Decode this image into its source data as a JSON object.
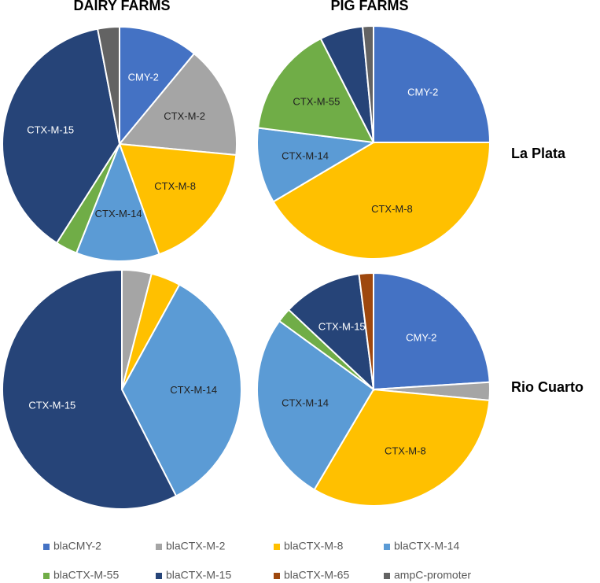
{
  "column_titles": [
    "DAIRY FARMS",
    "PIG FARMS"
  ],
  "row_titles": [
    "La Plata",
    "Rio Cuarto"
  ],
  "legend": [
    {
      "name": "blaCMY-2",
      "color": "#4472c4"
    },
    {
      "name": "blaCTX-M-2",
      "color": "#a5a5a5"
    },
    {
      "name": "blaCTX-M-8",
      "color": "#ffc000"
    },
    {
      "name": "blaCTX-M-14",
      "color": "#5b9bd5"
    },
    {
      "name": "blaCTX-M-55",
      "color": "#70ad47"
    },
    {
      "name": "blaCTX-M-15",
      "color": "#264478"
    },
    {
      "name": "blaCTX-M-65",
      "color": "#9e480e"
    },
    {
      "name": "ampC-promoter",
      "color": "#636363"
    }
  ],
  "chart_data": [
    {
      "type": "pie",
      "categories": [
        "blaCMY-2",
        "blaCTX-M-2",
        "blaCTX-M-8",
        "blaCTX-M-14",
        "blaCTX-M-55",
        "blaCTX-M-15",
        "ampC-promoter"
      ],
      "values": [
        11,
        15.5,
        18,
        11.5,
        3,
        38,
        3
      ],
      "slice_labels": [
        "CMY-2",
        "CTX-M-2",
        "CTX-M-8",
        "CTX-M-14",
        null,
        "CTX-M-15",
        null
      ]
    },
    {
      "type": "pie",
      "categories": [
        "blaCMY-2",
        "blaCTX-M-8",
        "blaCTX-M-14",
        "blaCTX-M-55",
        "blaCTX-M-15",
        "ampC-promoter"
      ],
      "values": [
        25,
        41.5,
        10.5,
        15.5,
        6,
        1.5
      ],
      "slice_labels": [
        "CMY-2",
        "CTX-M-8",
        "CTX-M-14",
        "CTX-M-55",
        null,
        null
      ]
    },
    {
      "type": "pie",
      "categories": [
        "blaCTX-M-2",
        "blaCTX-M-8",
        "blaCTX-M-14",
        "blaCTX-M-15"
      ],
      "values": [
        4,
        4,
        34.5,
        57.5
      ],
      "slice_labels": [
        null,
        null,
        "CTX-M-14",
        "CTX-M-15"
      ]
    },
    {
      "type": "pie",
      "categories": [
        "blaCMY-2",
        "blaCTX-M-2",
        "blaCTX-M-8",
        "blaCTX-M-14",
        "blaCTX-M-55",
        "blaCTX-M-15",
        "blaCTX-M-65"
      ],
      "values": [
        24,
        2.5,
        32,
        26.5,
        2,
        11,
        2
      ],
      "slice_labels": [
        "CMY-2",
        null,
        "CTX-M-8",
        "CTX-M-14",
        null,
        "CTX-M-15",
        null
      ]
    }
  ]
}
